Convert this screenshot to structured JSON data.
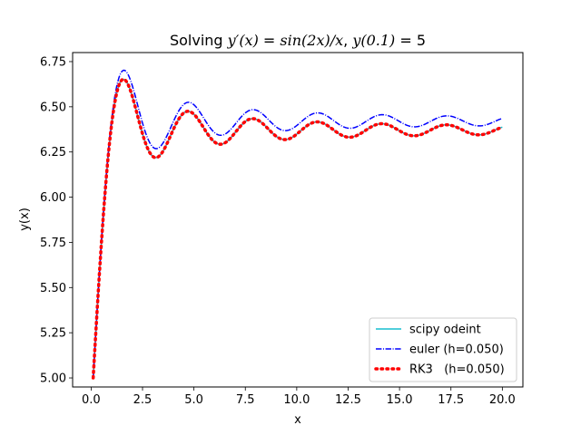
{
  "chart_data": {
    "type": "line",
    "title": "Solving y'(x) = sin(2x)/x,  y(0.1) = 5",
    "title_parts": {
      "prefix": "Solving ",
      "lhs": "y′(x)",
      "eq1": " = ",
      "rhs": "sin(2x)/x",
      "sep": ",  ",
      "ic_lhs": "y(0.1)",
      "eq2": " = ",
      "ic_rhs": "5"
    },
    "xlabel": "x",
    "ylabel": "y(x)",
    "xlim": [
      -0.9,
      21.0
    ],
    "ylim": [
      4.95,
      6.8
    ],
    "x_ticks": [
      0.0,
      2.5,
      5.0,
      7.5,
      10.0,
      12.5,
      15.0,
      17.5,
      20.0
    ],
    "x_tick_labels": [
      "0.0",
      "2.5",
      "5.0",
      "7.5",
      "10.0",
      "12.5",
      "15.0",
      "17.5",
      "20.0"
    ],
    "y_ticks": [
      5.0,
      5.25,
      5.5,
      5.75,
      6.0,
      6.25,
      6.5,
      6.75
    ],
    "y_tick_labels": [
      "5.00",
      "5.25",
      "5.50",
      "5.75",
      "6.00",
      "6.25",
      "6.50",
      "6.75"
    ],
    "grid": false,
    "legend_position": "lower-right",
    "x_range": [
      0.1,
      20.0
    ],
    "initial_condition": {
      "x0": 0.1,
      "y0": 5.0
    },
    "series": [
      {
        "name": "scipy odeint",
        "label": "scipy odeint",
        "color": "#17becf",
        "style": "solid",
        "method": "odeint"
      },
      {
        "name": "euler (h=0.050)",
        "label": "euler (h=0.050)",
        "color": "#0000ff",
        "style": "dashdot",
        "method": "euler",
        "h": 0.05
      },
      {
        "name": "RK3 (h=0.050)",
        "label": "RK3   (h=0.050)",
        "color": "#ff0000",
        "style": "dotted",
        "method": "rk3",
        "h": 0.05
      }
    ]
  }
}
